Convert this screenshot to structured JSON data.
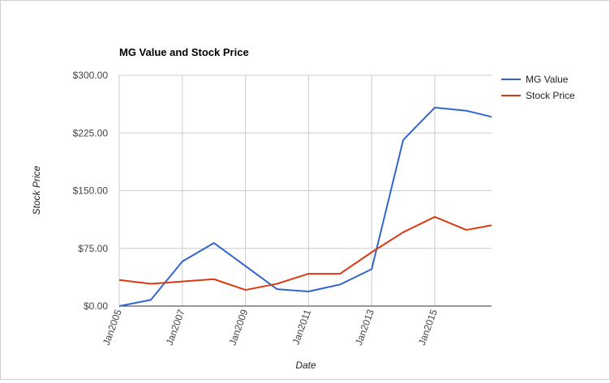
{
  "chart_data": {
    "type": "line",
    "title": "MG Value and Stock Price",
    "xlabel": "Date",
    "ylabel": "Stock Price",
    "x": [
      2005,
      2006,
      2007,
      2008,
      2009,
      2010,
      2011,
      2012,
      2013,
      2014,
      2015,
      2016,
      2016.8
    ],
    "xlim": [
      2005,
      2016.8
    ],
    "x_ticks": [
      {
        "value": 2005,
        "label": "Jan2005"
      },
      {
        "value": 2007,
        "label": "Jan2007"
      },
      {
        "value": 2009,
        "label": "Jan2009"
      },
      {
        "value": 2011,
        "label": "Jan2011"
      },
      {
        "value": 2013,
        "label": "Jan2013"
      },
      {
        "value": 2015,
        "label": "Jan2015"
      }
    ],
    "ylim": [
      0,
      300
    ],
    "y_ticks": [
      {
        "value": 0,
        "label": "$0.00"
      },
      {
        "value": 75,
        "label": "$75.00"
      },
      {
        "value": 150,
        "label": "$150.00"
      },
      {
        "value": 225,
        "label": "$225.00"
      },
      {
        "value": 300,
        "label": "$300.00"
      }
    ],
    "grid": true,
    "legend_position": "right",
    "series": [
      {
        "name": "MG Value",
        "color": "#3366cc",
        "values": [
          0,
          8,
          58,
          82,
          52,
          22,
          19,
          28,
          48,
          216,
          258,
          254,
          246
        ]
      },
      {
        "name": "Stock Price",
        "color": "#dc3912",
        "values": [
          34,
          29,
          32,
          35,
          21,
          29,
          42,
          42,
          70,
          96,
          116,
          99,
          105
        ]
      }
    ]
  }
}
